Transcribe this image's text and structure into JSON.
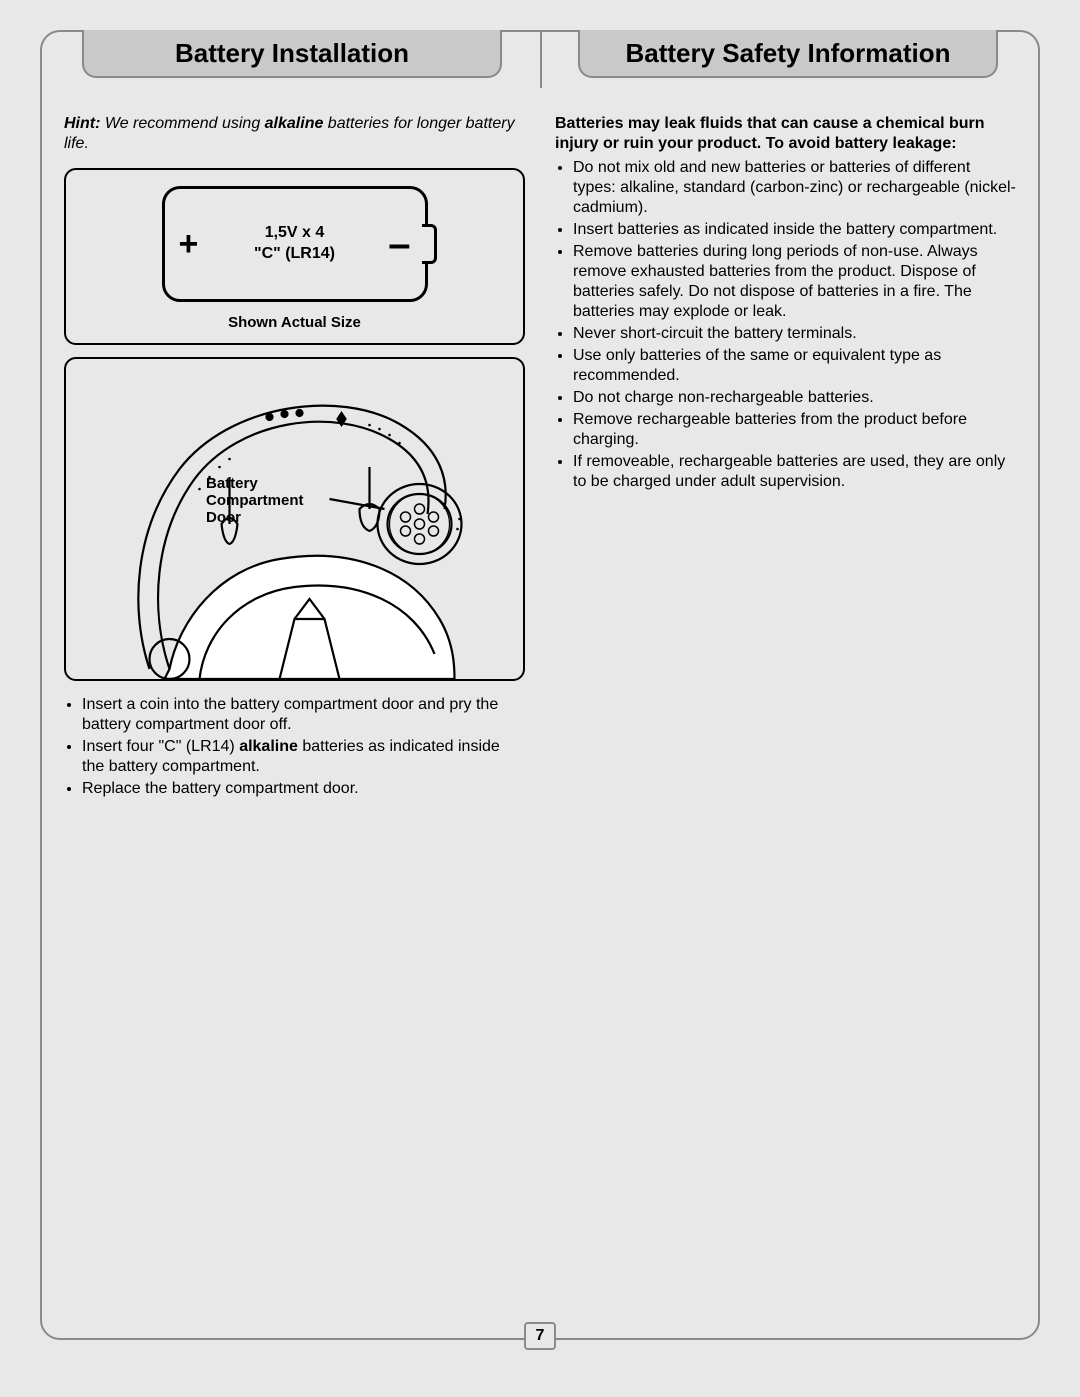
{
  "tabs": {
    "left": "Battery Installation",
    "right": "Battery Safety Information"
  },
  "hint": {
    "label": "Hint:",
    "text_before": " We recommend using ",
    "bold_word": "alkaline",
    "text_after": " batteries for longer battery life."
  },
  "battery": {
    "plus": "+",
    "minus": "–",
    "line1": "1,5V x 4",
    "line2": "\"C\" (LR14)",
    "actual_size": "Shown Actual Size"
  },
  "illustration_label": {
    "l1": "Battery",
    "l2": "Compartment",
    "l3": "Door"
  },
  "left_bullets": [
    {
      "pre": "Insert a coin into the battery compartment door and pry the battery compartment door off.",
      "bold": "",
      "post": ""
    },
    {
      "pre": "Insert four \"C\" (LR14) ",
      "bold": "alkaline",
      "post": " batteries as indicated inside the battery compartment."
    },
    {
      "pre": "Replace the battery compartment door.",
      "bold": "",
      "post": ""
    }
  ],
  "right_intro": "Batteries may leak fluids that can cause a chemical burn injury or ruin your product. To avoid battery leakage:",
  "right_bullets": [
    "Do not mix old and new batteries or batteries of different types: alkaline, standard (carbon-zinc) or rechargeable (nickel-cadmium).",
    "Insert batteries as indicated inside the battery compartment.",
    "Remove batteries during long periods of non-use. Always remove exhausted batteries from the product. Dispose of batteries safely. Do not dispose of batteries in a fire. The batteries may explode or leak.",
    "Never short-circuit the battery terminals.",
    "Use only batteries of the same or equivalent type as recommended.",
    "Do not charge non-rechargeable batteries.",
    "Remove rechargeable batteries from the product before charging.",
    "If removeable, rechargeable batteries are used, they are only to be charged under adult supervision."
  ],
  "page_number": "7",
  "colors": {
    "page_bg": "#e8e8e8",
    "tab_bg": "#c9c9c9",
    "border": "#8a8a8a",
    "text": "#000000"
  }
}
